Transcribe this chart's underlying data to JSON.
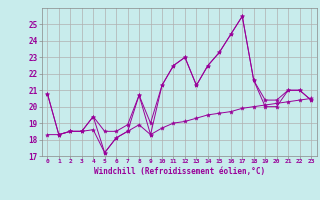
{
  "xlabel": "Windchill (Refroidissement éolien,°C)",
  "background_color": "#c8ecec",
  "grid_color": "#b0b0b0",
  "line_color": "#990099",
  "x_hours": [
    0,
    1,
    2,
    3,
    4,
    5,
    6,
    7,
    8,
    9,
    10,
    11,
    12,
    13,
    14,
    15,
    16,
    17,
    18,
    19,
    20,
    21,
    22,
    23
  ],
  "y_main": [
    20.8,
    18.3,
    18.5,
    18.5,
    19.4,
    17.2,
    18.1,
    18.5,
    20.7,
    18.3,
    21.3,
    22.5,
    23.0,
    21.3,
    22.5,
    23.3,
    24.4,
    25.5,
    21.6,
    20.0,
    20.0,
    21.0,
    21.0,
    20.4
  ],
  "y_low": [
    18.3,
    18.3,
    18.5,
    18.5,
    18.6,
    17.2,
    18.1,
    18.5,
    18.9,
    18.3,
    18.7,
    19.0,
    19.1,
    19.3,
    19.5,
    19.6,
    19.7,
    19.9,
    20.0,
    20.1,
    20.2,
    20.3,
    20.4,
    20.5
  ],
  "y_high": [
    20.8,
    18.3,
    18.5,
    18.5,
    19.4,
    18.5,
    18.5,
    18.9,
    20.7,
    19.0,
    21.3,
    22.5,
    23.0,
    21.3,
    22.5,
    23.3,
    24.4,
    25.5,
    21.6,
    20.4,
    20.4,
    21.0,
    21.0,
    20.4
  ],
  "ylim": [
    17,
    26
  ],
  "yticks": [
    17,
    18,
    19,
    20,
    21,
    22,
    23,
    24,
    25
  ],
  "xlim": [
    -0.5,
    23.5
  ]
}
